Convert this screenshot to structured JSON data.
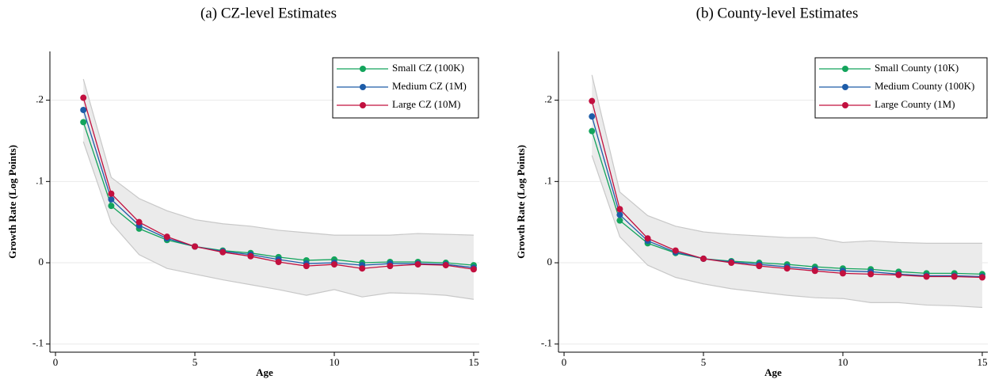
{
  "chart_data": [
    {
      "type": "line",
      "title": "(a) CZ-level Estimates",
      "x_label": "Age",
      "y_label": "Growth Rate (Log Points)",
      "x": [
        1,
        2,
        3,
        4,
        5,
        6,
        7,
        8,
        9,
        10,
        11,
        12,
        13,
        14,
        15
      ],
      "series": [
        {
          "name": "Small CZ (100K)",
          "color": "#13a45c",
          "values": [
            0.173,
            0.07,
            0.042,
            0.028,
            0.02,
            0.015,
            0.012,
            0.007,
            0.003,
            0.004,
            0.0,
            0.001,
            0.001,
            0.0,
            -0.003
          ]
        },
        {
          "name": "Medium CZ (1M)",
          "color": "#1d5ca8",
          "values": [
            0.188,
            0.078,
            0.046,
            0.03,
            0.02,
            0.014,
            0.01,
            0.004,
            -0.001,
            0.0,
            -0.003,
            -0.001,
            -0.001,
            -0.002,
            -0.006
          ]
        },
        {
          "name": "Large CZ (10M)",
          "color": "#c2103f",
          "values": [
            0.203,
            0.085,
            0.05,
            0.032,
            0.02,
            0.013,
            0.008,
            0.001,
            -0.004,
            -0.002,
            -0.007,
            -0.004,
            -0.002,
            -0.003,
            -0.008
          ]
        }
      ],
      "band": {
        "color": "#ebebeb",
        "upper": [
          0.226,
          0.105,
          0.079,
          0.064,
          0.053,
          0.048,
          0.045,
          0.04,
          0.037,
          0.034,
          0.034,
          0.034,
          0.036,
          0.035,
          0.034
        ],
        "lower": [
          0.149,
          0.049,
          0.01,
          -0.007,
          -0.014,
          -0.021,
          -0.027,
          -0.033,
          -0.04,
          -0.033,
          -0.042,
          -0.037,
          -0.038,
          -0.04,
          -0.045
        ]
      },
      "xlim": [
        -0.2,
        15.2
      ],
      "xticks": [
        0,
        5,
        10,
        15
      ],
      "ylim": [
        -0.11,
        0.26
      ],
      "yticks": [
        {
          "value": -0.1,
          "label": "-.1"
        },
        0,
        {
          "value": 0.1,
          "label": ".1"
        },
        {
          "value": 0.2,
          "label": ".2"
        }
      ],
      "grid": true,
      "legend": "top-right"
    },
    {
      "type": "line",
      "title": "(b) County-level Estimates",
      "x_label": "Age",
      "y_label": "Growth Rate (Log Points)",
      "x": [
        1,
        2,
        3,
        4,
        5,
        6,
        7,
        8,
        9,
        10,
        11,
        12,
        13,
        14,
        15
      ],
      "series": [
        {
          "name": "Small County (10K)",
          "color": "#13a45c",
          "values": [
            0.162,
            0.052,
            0.024,
            0.012,
            0.005,
            0.002,
            0.0,
            -0.002,
            -0.005,
            -0.007,
            -0.008,
            -0.011,
            -0.013,
            -0.013,
            -0.014
          ]
        },
        {
          "name": "Medium County (100K)",
          "color": "#1d5ca8",
          "values": [
            0.18,
            0.059,
            0.027,
            0.013,
            0.005,
            0.001,
            -0.002,
            -0.005,
            -0.008,
            -0.01,
            -0.011,
            -0.014,
            -0.016,
            -0.016,
            -0.017
          ]
        },
        {
          "name": "Large County (1M)",
          "color": "#c2103f",
          "values": [
            0.199,
            0.066,
            0.03,
            0.015,
            0.005,
            0.0,
            -0.004,
            -0.007,
            -0.01,
            -0.013,
            -0.014,
            -0.015,
            -0.017,
            -0.017,
            -0.018
          ]
        }
      ],
      "band": {
        "color": "#ebebeb",
        "upper": [
          0.231,
          0.087,
          0.058,
          0.045,
          0.038,
          0.035,
          0.033,
          0.031,
          0.031,
          0.025,
          0.027,
          0.025,
          0.024,
          0.024,
          0.024
        ],
        "lower": [
          0.132,
          0.032,
          -0.003,
          -0.018,
          -0.026,
          -0.032,
          -0.036,
          -0.04,
          -0.043,
          -0.044,
          -0.049,
          -0.049,
          -0.052,
          -0.053,
          -0.055
        ]
      },
      "xlim": [
        -0.2,
        15.2
      ],
      "xticks": [
        0,
        5,
        10,
        15
      ],
      "ylim": [
        -0.11,
        0.26
      ],
      "yticks": [
        {
          "value": -0.1,
          "label": "-.1"
        },
        0,
        {
          "value": 0.1,
          "label": ".1"
        },
        {
          "value": 0.2,
          "label": ".2"
        }
      ],
      "grid": true,
      "legend": "top-right"
    }
  ]
}
